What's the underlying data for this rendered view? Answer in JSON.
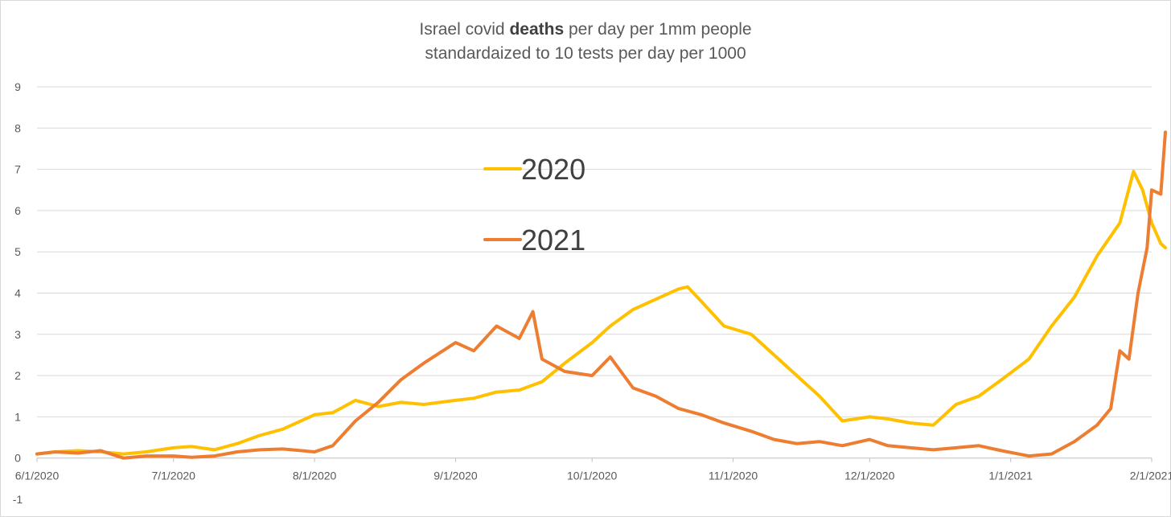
{
  "chart_data": {
    "type": "line",
    "title_parts": [
      "Israel covid ",
      "deaths",
      " per day per 1mm people"
    ],
    "subtitle": "standardaized to 10 tests per day per 1000",
    "xlabel": "",
    "ylabel": "",
    "ylim": [
      -1,
      9
    ],
    "ytick_labels": [
      "-1",
      "0",
      "1",
      "2",
      "3",
      "4",
      "5",
      "6",
      "7",
      "8",
      "9"
    ],
    "xtick_labels": [
      "6/1/2020",
      "7/1/2020",
      "8/1/2020",
      "9/1/2020",
      "10/1/2020",
      "11/1/2020",
      "12/1/2020",
      "1/1/2021",
      "2/1/2021"
    ],
    "x_dates": [
      "2020-06-01",
      "2020-07-01",
      "2020-08-01",
      "2020-09-01",
      "2020-10-01",
      "2020-11-01",
      "2020-12-01",
      "2021-01-01",
      "2021-02-01"
    ],
    "grid": true,
    "legend_position": "center-left",
    "series": [
      {
        "name": "2020",
        "color": "#FFC000",
        "points": [
          [
            "2020-06-01",
            0.1
          ],
          [
            "2020-06-05",
            0.15
          ],
          [
            "2020-06-10",
            0.18
          ],
          [
            "2020-06-15",
            0.15
          ],
          [
            "2020-06-20",
            0.1
          ],
          [
            "2020-06-25",
            0.15
          ],
          [
            "2020-07-01",
            0.25
          ],
          [
            "2020-07-05",
            0.28
          ],
          [
            "2020-07-10",
            0.2
          ],
          [
            "2020-07-15",
            0.35
          ],
          [
            "2020-07-20",
            0.55
          ],
          [
            "2020-07-25",
            0.7
          ],
          [
            "2020-08-01",
            1.05
          ],
          [
            "2020-08-05",
            1.1
          ],
          [
            "2020-08-10",
            1.4
          ],
          [
            "2020-08-15",
            1.25
          ],
          [
            "2020-08-20",
            1.35
          ],
          [
            "2020-08-25",
            1.3
          ],
          [
            "2020-09-01",
            1.4
          ],
          [
            "2020-09-05",
            1.45
          ],
          [
            "2020-09-10",
            1.6
          ],
          [
            "2020-09-15",
            1.65
          ],
          [
            "2020-09-20",
            1.85
          ],
          [
            "2020-09-25",
            2.3
          ],
          [
            "2020-10-01",
            2.8
          ],
          [
            "2020-10-05",
            3.2
          ],
          [
            "2020-10-10",
            3.6
          ],
          [
            "2020-10-15",
            3.85
          ],
          [
            "2020-10-20",
            4.1
          ],
          [
            "2020-10-22",
            4.15
          ],
          [
            "2020-10-25",
            3.8
          ],
          [
            "2020-10-30",
            3.2
          ],
          [
            "2020-11-05",
            3.0
          ],
          [
            "2020-11-10",
            2.5
          ],
          [
            "2020-11-15",
            2.0
          ],
          [
            "2020-11-20",
            1.5
          ],
          [
            "2020-11-25",
            0.9
          ],
          [
            "2020-12-01",
            1.0
          ],
          [
            "2020-12-05",
            0.95
          ],
          [
            "2020-12-10",
            0.85
          ],
          [
            "2020-12-15",
            0.8
          ],
          [
            "2020-12-20",
            1.3
          ],
          [
            "2020-12-25",
            1.5
          ],
          [
            "2020-12-30",
            1.9
          ],
          [
            "2021-01-05",
            2.4
          ],
          [
            "2021-01-10",
            3.2
          ],
          [
            "2021-01-15",
            3.9
          ],
          [
            "2021-01-20",
            4.9
          ],
          [
            "2021-01-25",
            5.7
          ],
          [
            "2021-01-28",
            6.95
          ],
          [
            "2021-01-30",
            6.5
          ],
          [
            "2021-02-01",
            5.7
          ],
          [
            "2021-02-03",
            5.2
          ],
          [
            "2021-02-04",
            5.1
          ]
        ]
      },
      {
        "name": "2021",
        "color": "#ED7D31",
        "points": [
          [
            "2020-06-01",
            0.1
          ],
          [
            "2020-06-05",
            0.15
          ],
          [
            "2020-06-10",
            0.12
          ],
          [
            "2020-06-15",
            0.18
          ],
          [
            "2020-06-20",
            0.0
          ],
          [
            "2020-06-25",
            0.05
          ],
          [
            "2020-07-01",
            0.05
          ],
          [
            "2020-07-05",
            0.02
          ],
          [
            "2020-07-10",
            0.05
          ],
          [
            "2020-07-15",
            0.15
          ],
          [
            "2020-07-20",
            0.2
          ],
          [
            "2020-07-25",
            0.22
          ],
          [
            "2020-08-01",
            0.15
          ],
          [
            "2020-08-05",
            0.3
          ],
          [
            "2020-08-10",
            0.9
          ],
          [
            "2020-08-15",
            1.35
          ],
          [
            "2020-08-20",
            1.9
          ],
          [
            "2020-08-25",
            2.3
          ],
          [
            "2020-09-01",
            2.8
          ],
          [
            "2020-09-05",
            2.6
          ],
          [
            "2020-09-10",
            3.2
          ],
          [
            "2020-09-15",
            2.9
          ],
          [
            "2020-09-18",
            3.55
          ],
          [
            "2020-09-20",
            2.4
          ],
          [
            "2020-09-25",
            2.1
          ],
          [
            "2020-10-01",
            2.0
          ],
          [
            "2020-10-05",
            2.45
          ],
          [
            "2020-10-10",
            1.7
          ],
          [
            "2020-10-15",
            1.5
          ],
          [
            "2020-10-20",
            1.2
          ],
          [
            "2020-10-25",
            1.05
          ],
          [
            "2020-10-30",
            0.85
          ],
          [
            "2020-11-05",
            0.65
          ],
          [
            "2020-11-10",
            0.45
          ],
          [
            "2020-11-15",
            0.35
          ],
          [
            "2020-11-20",
            0.4
          ],
          [
            "2020-11-25",
            0.3
          ],
          [
            "2020-12-01",
            0.45
          ],
          [
            "2020-12-05",
            0.3
          ],
          [
            "2020-12-10",
            0.25
          ],
          [
            "2020-12-15",
            0.2
          ],
          [
            "2020-12-20",
            0.25
          ],
          [
            "2020-12-25",
            0.3
          ],
          [
            "2020-12-30",
            0.18
          ],
          [
            "2021-01-05",
            0.05
          ],
          [
            "2021-01-10",
            0.1
          ],
          [
            "2021-01-15",
            0.4
          ],
          [
            "2021-01-20",
            0.8
          ],
          [
            "2021-01-23",
            1.2
          ],
          [
            "2021-01-25",
            2.6
          ],
          [
            "2021-01-27",
            2.4
          ],
          [
            "2021-01-29",
            4.0
          ],
          [
            "2021-01-31",
            5.1
          ],
          [
            "2021-02-01",
            6.5
          ],
          [
            "2021-02-03",
            6.4
          ],
          [
            "2021-02-04",
            7.9
          ]
        ]
      }
    ]
  }
}
